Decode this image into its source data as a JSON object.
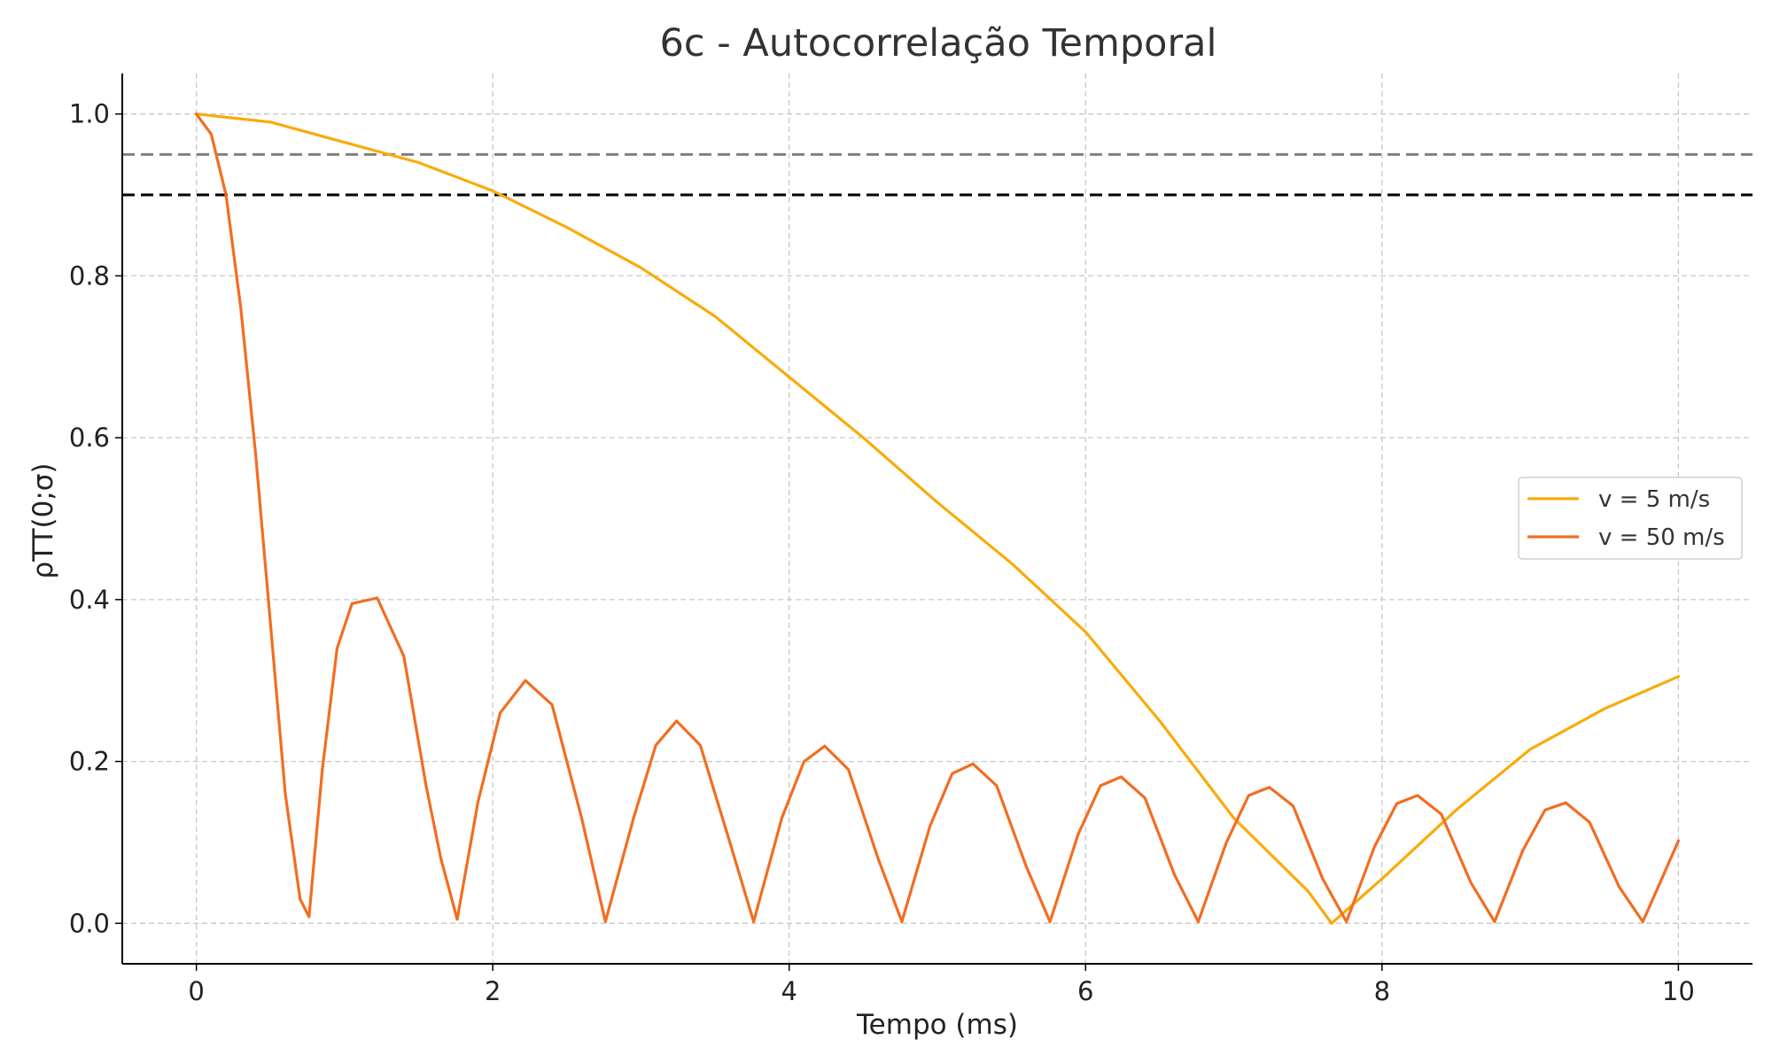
{
  "chart_data": {
    "type": "line",
    "title": "6c - Autocorrelação Temporal",
    "xlabel": "Tempo (ms)",
    "ylabel": "ρTT(0;σ)",
    "xlim": [
      -0.5,
      10.5
    ],
    "ylim": [
      -0.05,
      1.05
    ],
    "xticks": [
      0,
      2,
      4,
      6,
      8,
      10
    ],
    "xtick_labels": [
      "0",
      "2",
      "4",
      "6",
      "8",
      "10"
    ],
    "yticks": [
      0.0,
      0.2,
      0.4,
      0.6,
      0.8,
      1.0
    ],
    "ytick_labels": [
      "0.0",
      "0.2",
      "0.4",
      "0.6",
      "0.8",
      "1.0"
    ],
    "grid": true,
    "legend": "center-right",
    "series": [
      {
        "name": "v = 5 m/s",
        "color": "#f9ab0a",
        "x": [
          0,
          0.5,
          1,
          1.5,
          2,
          2.5,
          3,
          3.5,
          4,
          4.5,
          5,
          5.5,
          6,
          6.5,
          7,
          7.5,
          7.66,
          8,
          8.5,
          9,
          9.5,
          10
        ],
        "values": [
          1.0,
          0.99,
          0.965,
          0.94,
          0.905,
          0.86,
          0.81,
          0.75,
          0.675,
          0.6,
          0.52,
          0.445,
          0.36,
          0.25,
          0.13,
          0.04,
          0.0,
          0.055,
          0.14,
          0.215,
          0.265,
          0.305
        ]
      },
      {
        "name": "v = 50 m/s",
        "color": "#f26d21",
        "x": [
          0,
          0.1,
          0.2,
          0.3,
          0.4,
          0.5,
          0.6,
          0.7,
          0.76,
          0.85,
          0.95,
          1.05,
          1.22,
          1.4,
          1.55,
          1.65,
          1.76,
          1.9,
          2.05,
          2.22,
          2.4,
          2.6,
          2.76,
          2.95,
          3.1,
          3.24,
          3.4,
          3.6,
          3.76,
          3.95,
          4.1,
          4.24,
          4.4,
          4.6,
          4.76,
          4.95,
          5.1,
          5.24,
          5.4,
          5.6,
          5.76,
          5.95,
          6.1,
          6.24,
          6.4,
          6.6,
          6.76,
          6.95,
          7.1,
          7.24,
          7.4,
          7.6,
          7.76,
          7.95,
          8.1,
          8.24,
          8.4,
          8.6,
          8.76,
          8.95,
          9.1,
          9.24,
          9.4,
          9.6,
          9.76,
          9.9,
          10.0
        ],
        "values": [
          1.0,
          0.975,
          0.9,
          0.76,
          0.58,
          0.37,
          0.16,
          0.03,
          0.008,
          0.19,
          0.34,
          0.395,
          0.402,
          0.33,
          0.17,
          0.08,
          0.005,
          0.15,
          0.26,
          0.3,
          0.27,
          0.13,
          0.002,
          0.13,
          0.22,
          0.25,
          0.22,
          0.1,
          0.002,
          0.13,
          0.2,
          0.219,
          0.19,
          0.08,
          0.002,
          0.12,
          0.185,
          0.197,
          0.17,
          0.07,
          0.002,
          0.11,
          0.17,
          0.181,
          0.155,
          0.06,
          0.002,
          0.1,
          0.158,
          0.168,
          0.145,
          0.055,
          0.002,
          0.095,
          0.148,
          0.158,
          0.135,
          0.05,
          0.002,
          0.09,
          0.14,
          0.149,
          0.125,
          0.045,
          0.002,
          0.06,
          0.102
        ]
      }
    ],
    "reference_lines": [
      {
        "y": 0.95,
        "color": "#808080",
        "style": "dashed"
      },
      {
        "y": 0.9,
        "color": "#000000",
        "style": "dashed"
      }
    ]
  }
}
